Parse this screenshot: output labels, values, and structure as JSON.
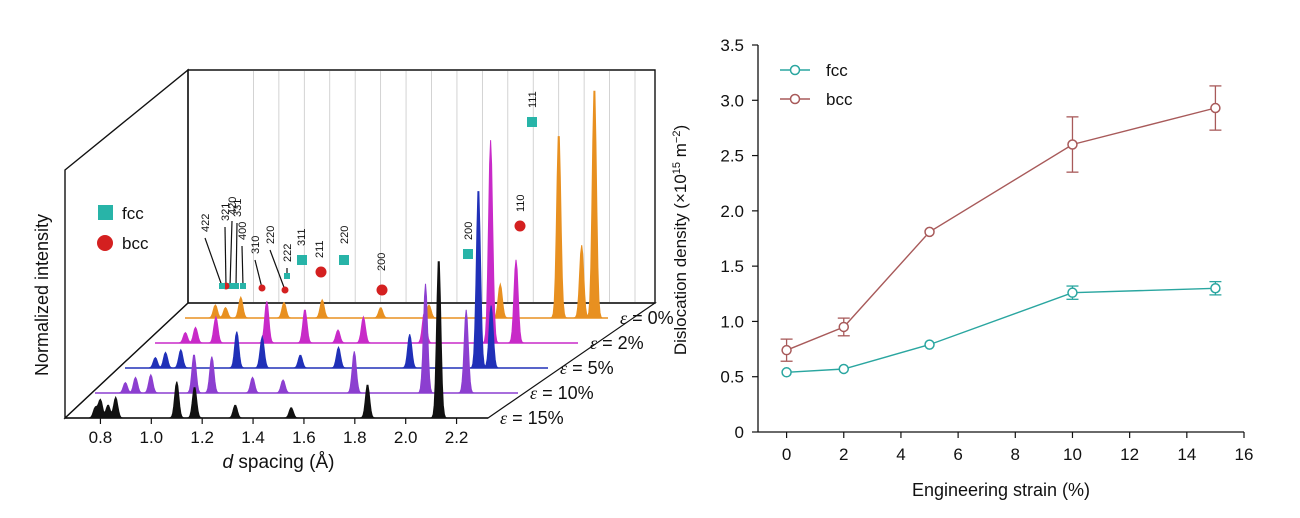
{
  "chart_data": [
    {
      "type": "line",
      "subtype": "stacked-3d-diffraction-patterns",
      "title": "",
      "xlabel": "d spacing (Å)",
      "xlabel_italic_prefix": "d",
      "xlabel_rest": " spacing (Å)",
      "ylabel": "Normalized intensity",
      "xlim": [
        0.7,
        2.3
      ],
      "xticks": [
        "0.8",
        "1.0",
        "1.2",
        "1.4",
        "1.6",
        "1.8",
        "2.0",
        "2.2"
      ],
      "legend": {
        "position": "top-left",
        "entries": [
          {
            "label": "fcc",
            "marker": "square",
            "color": "#28b4a8"
          },
          {
            "label": "bcc",
            "marker": "circle",
            "color": "#d42020"
          }
        ]
      },
      "series": [
        {
          "name": "ε = 15%",
          "label_prefix": "ε",
          "label_value": " = 15%",
          "color": "#111111",
          "peaks": [
            [
              0.78,
              0.04
            ],
            [
              0.8,
              0.07
            ],
            [
              0.83,
              0.05
            ],
            [
              0.86,
              0.08
            ],
            [
              1.1,
              0.14
            ],
            [
              1.17,
              0.12
            ],
            [
              1.33,
              0.05
            ],
            [
              1.55,
              0.04
            ],
            [
              1.85,
              0.13
            ],
            [
              2.13,
              0.62
            ]
          ]
        },
        {
          "name": "ε = 10%",
          "label_prefix": "ε",
          "label_value": " = 10%",
          "color": "#8c3fd0",
          "peaks": [
            [
              0.78,
              0.04
            ],
            [
              0.82,
              0.06
            ],
            [
              0.88,
              0.07
            ],
            [
              1.05,
              0.15
            ],
            [
              1.12,
              0.14
            ],
            [
              1.28,
              0.06
            ],
            [
              1.4,
              0.05
            ],
            [
              1.68,
              0.16
            ],
            [
              1.96,
              0.42
            ],
            [
              2.12,
              0.32
            ]
          ]
        },
        {
          "name": "ε = 5%",
          "label_prefix": "ε",
          "label_value": " = 5%",
          "color": "#2030b8",
          "peaks": [
            [
              0.78,
              0.04
            ],
            [
              0.82,
              0.06
            ],
            [
              0.88,
              0.07
            ],
            [
              1.1,
              0.14
            ],
            [
              1.2,
              0.12
            ],
            [
              1.35,
              0.05
            ],
            [
              1.5,
              0.08
            ],
            [
              1.78,
              0.13
            ],
            [
              2.05,
              0.7
            ],
            [
              2.1,
              0.24
            ]
          ]
        },
        {
          "name": "ε = 2%",
          "label_prefix": "ε",
          "label_value": " = 2%",
          "color": "#c82ac8",
          "peaks": [
            [
              0.78,
              0.04
            ],
            [
              0.82,
              0.06
            ],
            [
              0.9,
              0.1
            ],
            [
              1.1,
              0.16
            ],
            [
              1.25,
              0.13
            ],
            [
              1.38,
              0.05
            ],
            [
              1.48,
              0.1
            ],
            [
              1.72,
              0.12
            ],
            [
              1.98,
              0.78
            ],
            [
              2.08,
              0.32
            ]
          ]
        },
        {
          "name": "ε = 0%",
          "label_prefix": "ε",
          "label_value": " = 0%",
          "color": "#e89020",
          "peaks": [
            [
              0.78,
              0.05
            ],
            [
              0.82,
              0.04
            ],
            [
              0.88,
              0.08
            ],
            [
              1.05,
              0.06
            ],
            [
              1.2,
              0.07
            ],
            [
              1.43,
              0.04
            ],
            [
              1.62,
              0.05
            ],
            [
              1.9,
              0.13
            ],
            [
              2.13,
              0.72
            ],
            [
              2.22,
              0.28
            ],
            [
              2.27,
              0.9
            ]
          ]
        }
      ],
      "peak_labels": [
        {
          "text": "111",
          "phase": "fcc"
        },
        {
          "text": "110",
          "phase": "bcc"
        },
        {
          "text": "200",
          "phase": "fcc"
        },
        {
          "text": "200",
          "phase": "bcc"
        },
        {
          "text": "220",
          "phase": "fcc"
        },
        {
          "text": "211",
          "phase": "bcc"
        },
        {
          "text": "311",
          "phase": "fcc"
        },
        {
          "text": "222",
          "phase": "fcc"
        },
        {
          "text": "220",
          "phase": "bcc"
        },
        {
          "text": "310",
          "phase": "bcc"
        },
        {
          "text": "400",
          "phase": "fcc"
        },
        {
          "text": "331",
          "phase": "fcc"
        },
        {
          "text": "420",
          "phase": "fcc"
        },
        {
          "text": "321",
          "phase": "bcc"
        },
        {
          "text": "422",
          "phase": "fcc"
        }
      ],
      "colors": {
        "fcc": "#28b4a8",
        "bcc": "#d42020",
        "grid": "#c8c8c8"
      }
    },
    {
      "type": "line",
      "title": "",
      "xlabel": "Engineering strain (%)",
      "ylabel": "Dislocation density (×10",
      "ylabel_sup": "15",
      "ylabel_mid": " m",
      "ylabel_sup2": "−2",
      "ylabel_end": ")",
      "xlim": [
        -1,
        16
      ],
      "ylim": [
        0,
        3.5
      ],
      "xticks": [
        0,
        2,
        4,
        6,
        8,
        10,
        12,
        14,
        16
      ],
      "yticks": [
        "0",
        "0.5",
        "1.0",
        "1.5",
        "2.0",
        "2.5",
        "3.0",
        "3.5"
      ],
      "grid": false,
      "legend": {
        "position": "top-left"
      },
      "series": [
        {
          "name": "fcc",
          "color": "#2aa6a0",
          "x": [
            0,
            2,
            5,
            10,
            15
          ],
          "y": [
            0.54,
            0.57,
            0.79,
            1.26,
            1.3
          ],
          "err": [
            0.03,
            0.02,
            0.02,
            0.06,
            0.06
          ]
        },
        {
          "name": "bcc",
          "color": "#a85a5a",
          "x": [
            0,
            2,
            5,
            10,
            15
          ],
          "y": [
            0.74,
            0.95,
            1.81,
            2.6,
            2.93
          ],
          "err": [
            0.1,
            0.08,
            0.02,
            0.25,
            0.2
          ]
        }
      ]
    }
  ]
}
